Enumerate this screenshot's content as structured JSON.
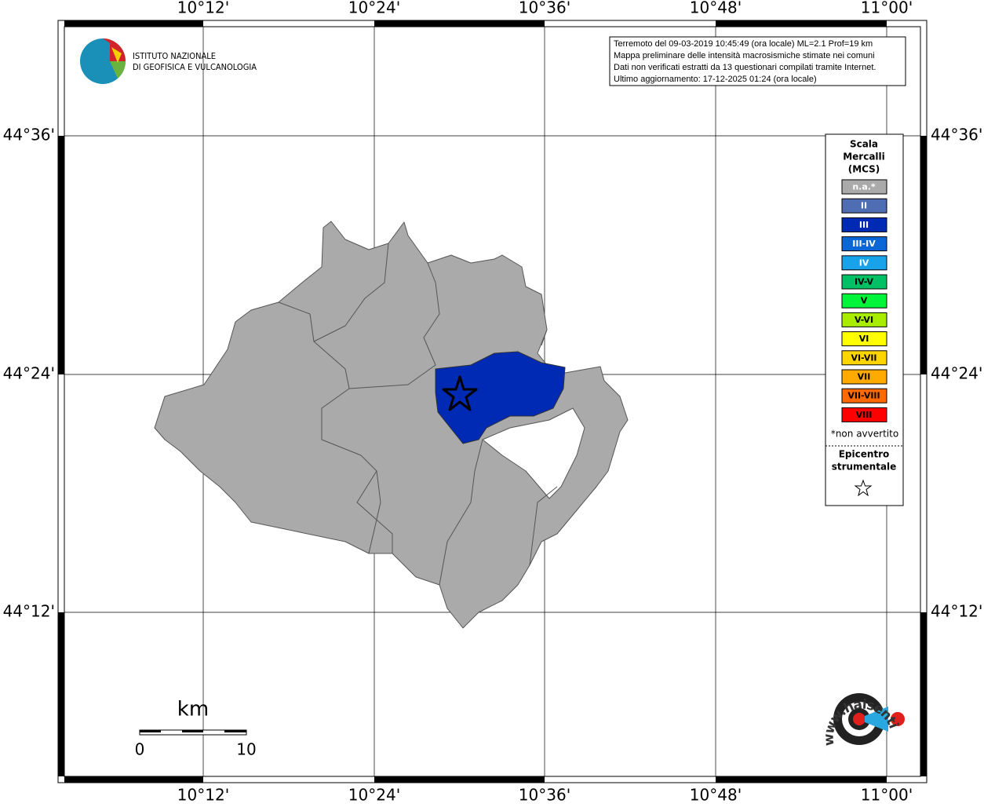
{
  "map": {
    "lon_labels": [
      "10°12'",
      "10°24'",
      "10°36'",
      "10°48'",
      "11°00'"
    ],
    "lat_labels": [
      "44°36'",
      "44°24'",
      "44°12'"
    ],
    "info": [
      "Terremoto del 09-03-2019 10:45:49 (ora locale) ML=2.1 Prof=19 km",
      "Mappa preliminare delle intensità macrosismiche stimate nei comuni",
      "Dati non verificati estratti da 13 questionari compilati tramite Internet.",
      "Ultimo aggiornamento: 17-12-2025 01:24 (ora locale)"
    ],
    "ingv": [
      "ISTITUTO NAZIONALE",
      "DI GEOFISICA E VULCANOLOGIA"
    ],
    "legend": {
      "title": [
        "Scala",
        "Mercalli",
        "(MCS)"
      ],
      "items": [
        {
          "name": "n.a.*",
          "color": "#aaaaaa"
        },
        {
          "name": "II",
          "color": "#4f6db3"
        },
        {
          "name": "III",
          "color": "#002ab3"
        },
        {
          "name": "III-IV",
          "color": "#0b66d6"
        },
        {
          "name": "IV",
          "color": "#17a2ea"
        },
        {
          "name": "IV-V",
          "color": "#00c065"
        },
        {
          "name": "V",
          "color": "#00f53a"
        },
        {
          "name": "V-VI",
          "color": "#a8ec00"
        },
        {
          "name": "VI",
          "color": "#ffff00"
        },
        {
          "name": "VI-VII",
          "color": "#ffd500"
        },
        {
          "name": "VII",
          "color": "#ffaa00"
        },
        {
          "name": "VII-VIII",
          "color": "#ff6a00"
        },
        {
          "name": "VIII",
          "color": "#ff0000"
        }
      ],
      "note": "*non avvertito",
      "epicenter": [
        "Epicentro",
        "strumentale"
      ]
    },
    "scale_bar": {
      "unit": "km",
      "start": "0",
      "end": "10"
    },
    "hst_logo": "www.haisentitoilterremoto.it"
  }
}
